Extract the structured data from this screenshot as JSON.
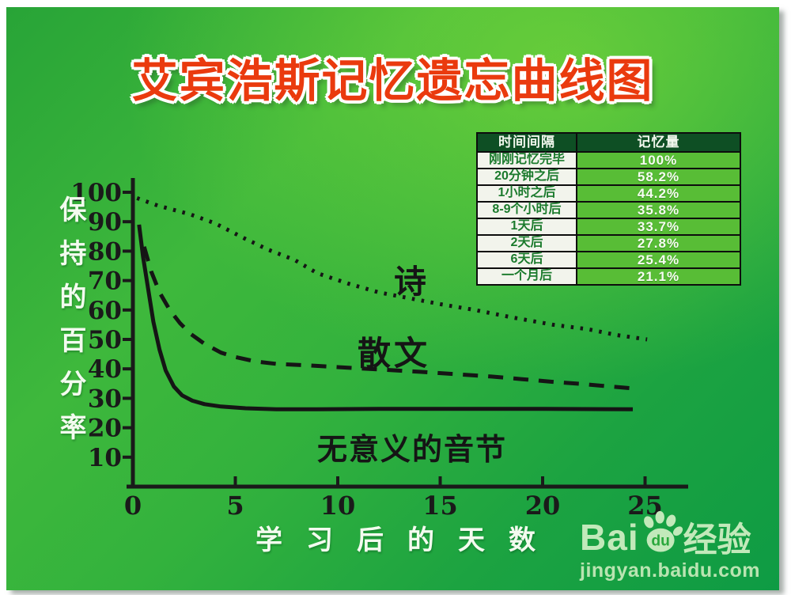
{
  "title": "艾宾浩斯记忆遗忘曲线图",
  "table": {
    "headers": [
      "时间间隔",
      "记忆量"
    ],
    "rows": [
      {
        "interval": "刚刚记忆完毕",
        "retention": "100%"
      },
      {
        "interval": "20分钟之后",
        "retention": "58.2%"
      },
      {
        "interval": "1小时之后",
        "retention": "44.2%"
      },
      {
        "interval": "8-9个小时后",
        "retention": "35.8%"
      },
      {
        "interval": "1天后",
        "retention": "33.7%"
      },
      {
        "interval": "2天后",
        "retention": "27.8%"
      },
      {
        "interval": "6天后",
        "retention": "25.4%"
      },
      {
        "interval": "一个月后",
        "retention": "21.1%"
      }
    ]
  },
  "chart_data": {
    "type": "line",
    "title": "艾宾浩斯记忆遗忘曲线图",
    "xlabel": "学习后的天数",
    "ylabel": "保持的百分率",
    "xlim": [
      0,
      27
    ],
    "ylim": [
      0,
      105
    ],
    "x_ticks": [
      0,
      5,
      10,
      15,
      20,
      25
    ],
    "y_ticks": [
      100,
      90,
      80,
      70,
      60,
      50,
      40,
      30,
      20,
      10
    ],
    "grid": false,
    "legend_position": "labels-on-curves",
    "series": [
      {
        "id": "poetry",
        "name": "诗",
        "style": "dotted",
        "points": [
          [
            0.2,
            98
          ],
          [
            1.2,
            95.5
          ],
          [
            2.8,
            92.5
          ],
          [
            4,
            89.5
          ],
          [
            5.4,
            84.5
          ],
          [
            6.6,
            80.5
          ],
          [
            7.9,
            77
          ],
          [
            9,
            72.5
          ],
          [
            10.5,
            69
          ],
          [
            12,
            66
          ],
          [
            13.5,
            64
          ],
          [
            15,
            62
          ],
          [
            16.7,
            60
          ],
          [
            18.5,
            57.5
          ],
          [
            20.5,
            55
          ],
          [
            22.2,
            53.5
          ],
          [
            23.6,
            51.5
          ],
          [
            25.1,
            50
          ]
        ]
      },
      {
        "id": "prose",
        "name": "散文",
        "style": "dashed",
        "points": [
          [
            0.55,
            81.5
          ],
          [
            0.9,
            73
          ],
          [
            1.3,
            66
          ],
          [
            1.8,
            60
          ],
          [
            2.3,
            55.5
          ],
          [
            2.8,
            52
          ],
          [
            3.5,
            48.5
          ],
          [
            4.3,
            45.5
          ],
          [
            5,
            44
          ],
          [
            6,
            42.5
          ],
          [
            7,
            41.7
          ],
          [
            8.5,
            41.2
          ],
          [
            10,
            40.6
          ],
          [
            12,
            39.8
          ],
          [
            14,
            39
          ],
          [
            16,
            38.1
          ],
          [
            17.5,
            37.4
          ],
          [
            19,
            36.5
          ],
          [
            20.5,
            35.6
          ],
          [
            22,
            34.8
          ],
          [
            23.3,
            34
          ],
          [
            24.5,
            33.3
          ]
        ]
      },
      {
        "id": "syllables",
        "name": "无意义的音节",
        "style": "solid",
        "points": [
          [
            0.3,
            89
          ],
          [
            0.5,
            78
          ],
          [
            0.75,
            67
          ],
          [
            1,
            56
          ],
          [
            1.3,
            46.5
          ],
          [
            1.6,
            39.5
          ],
          [
            2,
            34
          ],
          [
            2.4,
            31
          ],
          [
            2.9,
            29.2
          ],
          [
            3.5,
            28
          ],
          [
            4.3,
            27.2
          ],
          [
            5.5,
            26.6
          ],
          [
            7,
            26.3
          ],
          [
            9,
            26.3
          ],
          [
            12,
            26.4
          ],
          [
            16,
            26.4
          ],
          [
            20,
            26.4
          ],
          [
            24.4,
            26.3
          ]
        ]
      }
    ]
  },
  "branding": {
    "logo_bai": "Bai",
    "logo_du": "du",
    "logo_suffix": "经验",
    "url": "jingyan.baidu.com"
  },
  "colors": {
    "title_red": "#ea3a0e",
    "title_outline": "#ffffff",
    "board_green_bright": "#63cb38",
    "board_green_dark": "#0e9b44",
    "table_header_bg": "#0e4f24",
    "table_interval_bg": "#f2f4ec",
    "table_interval_text": "#1a7a2c",
    "table_retention_bg": "#58bd36",
    "axis_black": "#1a1a1a",
    "axis_text_white": "#f3fbef",
    "logo_green": "#c2e9ba"
  }
}
